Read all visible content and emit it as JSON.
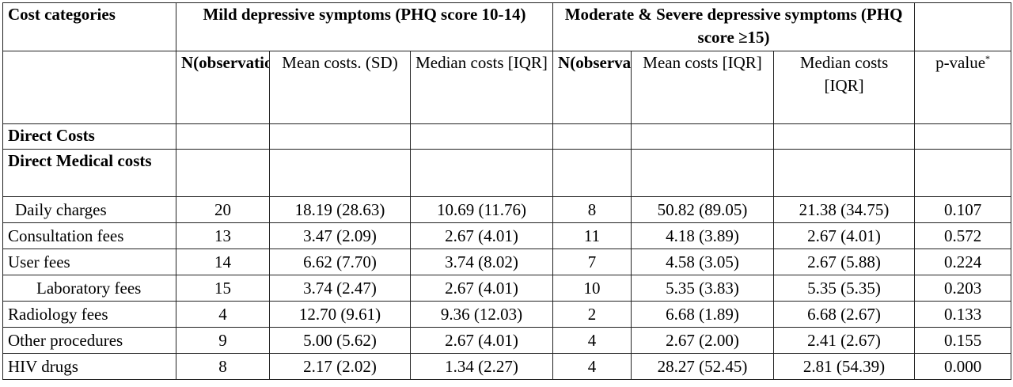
{
  "table": {
    "header": {
      "cost_categories": "Cost categories",
      "group_mild": "Mild depressive symptoms (PHQ score 10-14)",
      "group_severe": "Moderate & Severe depressive symptoms (PHQ score ≥15)",
      "n_mild": "N(observation)",
      "mean_mild": "Mean costs. (SD)",
      "median_mild": "Median costs [IQR]",
      "n_severe": "N(observation)",
      "mean_severe": "Mean costs [IQR]",
      "median_severe": "Median costs [IQR]",
      "p_value": "p-value",
      "p_value_mark": "*"
    },
    "sections": {
      "direct_costs": "Direct Costs",
      "direct_medical_costs": "Direct Medical costs"
    },
    "rows": [
      {
        "category": "Daily charges",
        "n_mild": "20",
        "mean_mild": "18.19 (28.63)",
        "median_mild": "10.69 (11.76)",
        "n_severe": "8",
        "mean_severe": "50.82 (89.05)",
        "median_severe": "21.38 (34.75)",
        "p": "0.107"
      },
      {
        "category": "Consultation fees",
        "n_mild": "13",
        "mean_mild": "3.47 (2.09)",
        "median_mild": "2.67 (4.01)",
        "n_severe": "11",
        "mean_severe": "4.18 (3.89)",
        "median_severe": "2.67 (4.01)",
        "p": "0.572"
      },
      {
        "category": "User fees",
        "n_mild": "14",
        "mean_mild": "6.62 (7.70)",
        "median_mild": "3.74 (8.02)",
        "n_severe": "7",
        "mean_severe": "4.58 (3.05)",
        "median_severe": "2.67 (5.88)",
        "p": "0.224"
      },
      {
        "category": "Laboratory fees",
        "n_mild": "15",
        "mean_mild": "3.74 (2.47)",
        "median_mild": "2.67 (4.01)",
        "n_severe": "10",
        "mean_severe": "5.35 (3.83)",
        "median_severe": "5.35 (5.35)",
        "p": "0.203"
      },
      {
        "category": "Radiology fees",
        "n_mild": "4",
        "mean_mild": "12.70 (9.61)",
        "median_mild": "9.36 (12.03)",
        "n_severe": "2",
        "mean_severe": "6.68 (1.89)",
        "median_severe": "6.68 (2.67)",
        "p": "0.133"
      },
      {
        "category": "Other procedures",
        "n_mild": "9",
        "mean_mild": "5.00 (5.62)",
        "median_mild": "2.67 (4.01)",
        "n_severe": "4",
        "mean_severe": "2.67 (2.00)",
        "median_severe": "2.41 (2.67)",
        "p": "0.155"
      },
      {
        "category": "HIV drugs",
        "n_mild": "8",
        "mean_mild": "2.17 (2.02)",
        "median_mild": "1.34 (2.27)",
        "n_severe": "4",
        "mean_severe": "28.27 (52.45)",
        "median_severe": "2.81 (54.39)",
        "p": "0.000"
      }
    ]
  }
}
